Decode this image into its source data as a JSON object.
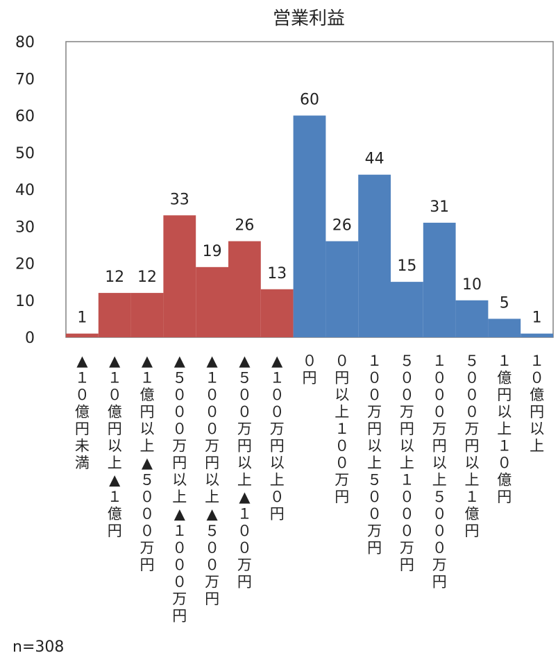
{
  "chart_data": {
    "type": "bar",
    "title": "営業利益",
    "ylim": [
      0,
      80
    ],
    "yticks": [
      0,
      10,
      20,
      30,
      40,
      50,
      60,
      70,
      80
    ],
    "grid": false,
    "categories": [
      "▲１０億円未満",
      "▲１０億円以上▲１億円",
      "▲１億円以上▲５０００万円",
      "▲５０００万円以上▲１０００万円",
      "▲１０００万円以上▲５００万円",
      "▲５００万円以上▲１００万円",
      "▲１００万円以上０円",
      "０円",
      "０円以上１００万円",
      "１００万円以上５００万円",
      "５００万円以上１０００万円",
      "１０００万円以上５０００万円",
      "５０００万円以上１億円",
      "１億円以上１０億円",
      "１０億円以上"
    ],
    "values": [
      1,
      12,
      12,
      33,
      19,
      26,
      13,
      60,
      26,
      44,
      15,
      31,
      10,
      5,
      1
    ],
    "colors": {
      "negative": "#c0504d",
      "non_negative": "#4f81bd"
    },
    "note": "n=308"
  }
}
